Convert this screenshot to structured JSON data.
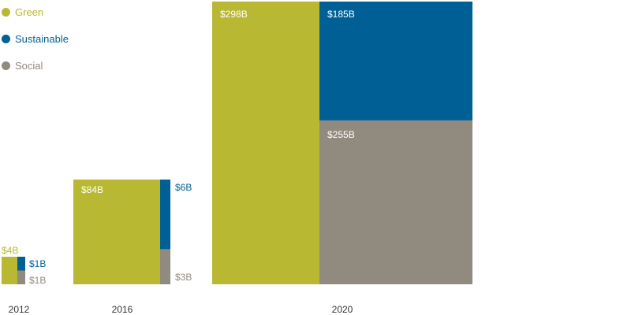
{
  "chart_data": {
    "type": "treemap",
    "title": "",
    "series": [
      {
        "name": "Green",
        "color": "#B9B832"
      },
      {
        "name": "Sustainable",
        "color": "#006096"
      },
      {
        "name": "Social",
        "color": "#918A7E"
      }
    ],
    "groups": [
      {
        "year": "2012",
        "values": [
          {
            "series": "Green",
            "value": 4,
            "label": "$4B"
          },
          {
            "series": "Sustainable",
            "value": 1,
            "label": "$1B"
          },
          {
            "series": "Social",
            "value": 1,
            "label": "$1B"
          }
        ]
      },
      {
        "year": "2016",
        "values": [
          {
            "series": "Green",
            "value": 84,
            "label": "$84B"
          },
          {
            "series": "Sustainable",
            "value": 6,
            "label": "$6B"
          },
          {
            "series": "Social",
            "value": 3,
            "label": "$3B"
          }
        ]
      },
      {
        "year": "2020",
        "values": [
          {
            "series": "Green",
            "value": 298,
            "label": "$298B"
          },
          {
            "series": "Sustainable",
            "value": 185,
            "label": "$185B"
          },
          {
            "series": "Social",
            "value": 255,
            "label": "$255B"
          }
        ]
      }
    ],
    "legend_position": "top-left"
  }
}
